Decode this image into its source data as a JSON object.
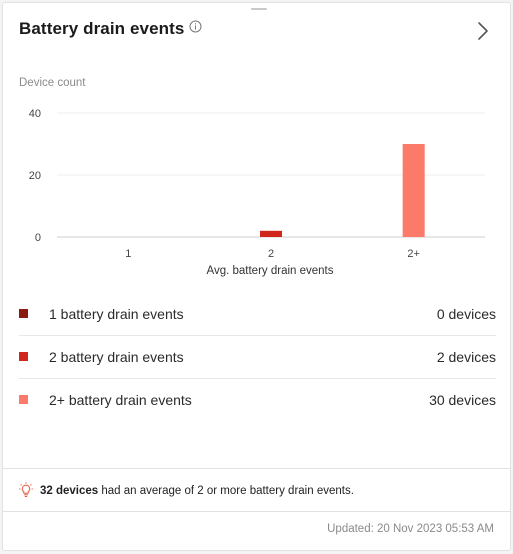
{
  "card": {
    "title": "Battery drain events",
    "info_icon": "info-icon",
    "expand_icon": "chevron-right-icon"
  },
  "chart_data": {
    "type": "bar",
    "ylabel": "Device count",
    "xlabel": "Avg. battery drain events",
    "categories": [
      "1",
      "2",
      "2+"
    ],
    "values": [
      0,
      2,
      30
    ],
    "colors": [
      "#8b1a10",
      "#d0261c",
      "#fb7a6a"
    ],
    "ylim": [
      0,
      40
    ],
    "yticks": [
      "0",
      "20",
      "40"
    ],
    "grid": true
  },
  "legend": [
    {
      "label": "1 battery drain events",
      "value": "0 devices",
      "color": "#8b1a10"
    },
    {
      "label": "2 battery drain events",
      "value": "2 devices",
      "color": "#d0261c"
    },
    {
      "label": "2+ battery drain events",
      "value": "30 devices",
      "color": "#fb7a6a"
    }
  ],
  "insight": {
    "icon": "lightbulb-icon",
    "count": "32 devices",
    "text": " had an average of 2 or more battery drain events."
  },
  "footer": {
    "updated": "Updated: 20 Nov 2023 05:53 AM"
  }
}
